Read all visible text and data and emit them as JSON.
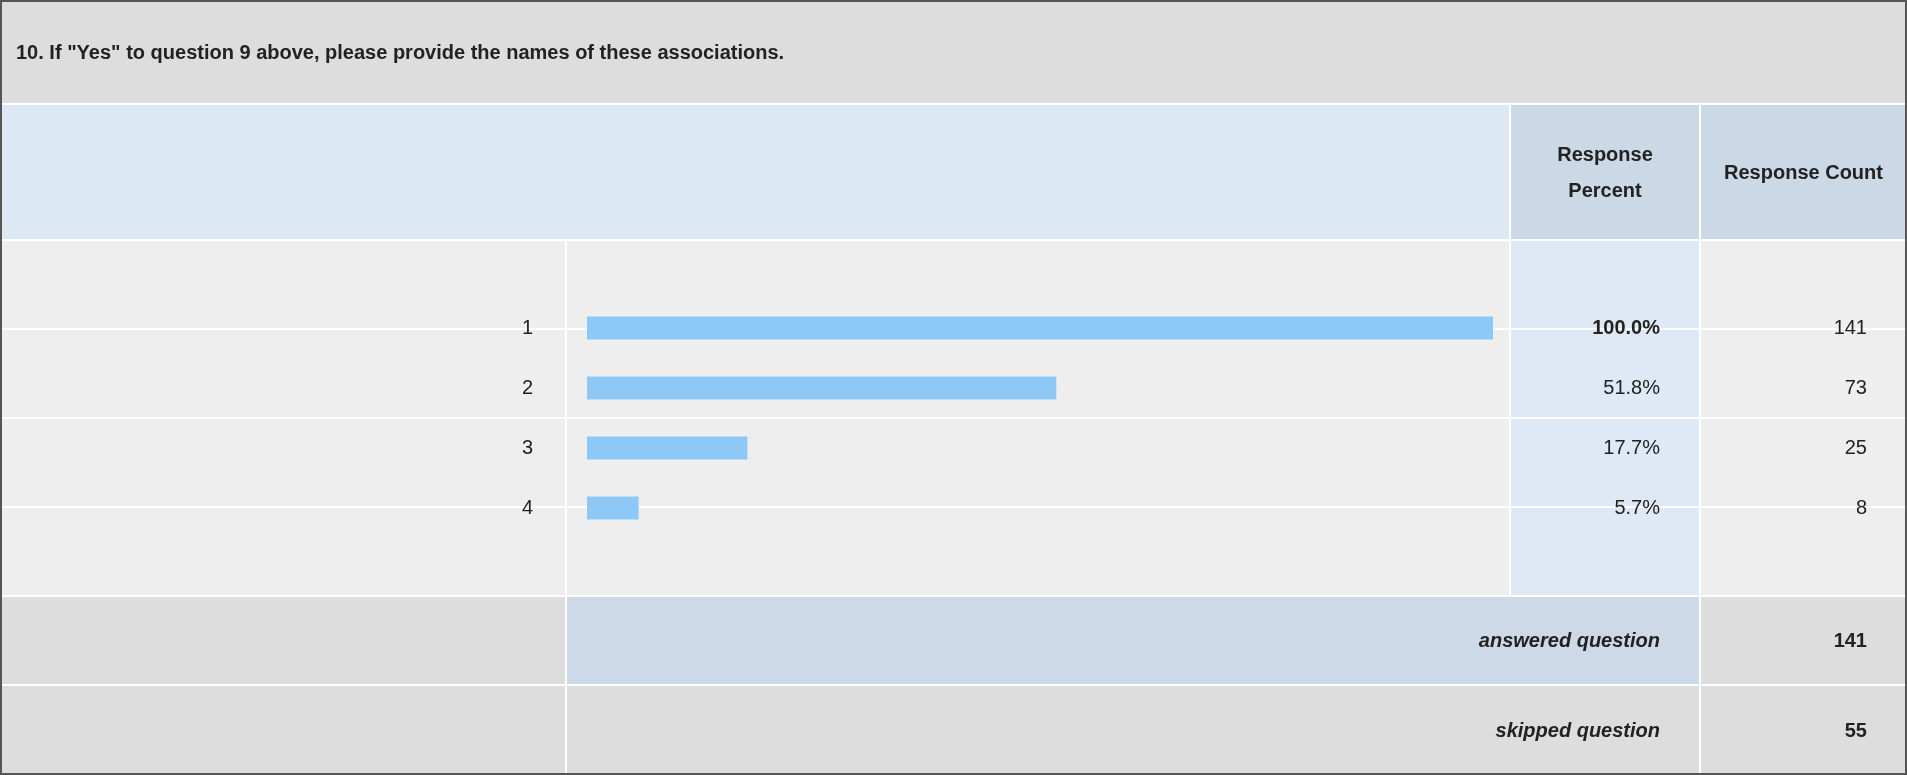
{
  "chart_data": {
    "type": "bar",
    "orientation": "horizontal",
    "title": "10. If \"Yes\" to question 9 above, please provide the names of these associations.",
    "categories": [
      "1",
      "2",
      "3",
      "4"
    ],
    "values": [
      100,
      51.8,
      17.7,
      5.7
    ],
    "value_labels": [
      "100.0%",
      "51.8%",
      "17.7%",
      "5.7%"
    ],
    "color": "#8ec8f6",
    "xlim": [
      0,
      100
    ],
    "tick_labels": "y",
    "annotations": [
      "Response Percent",
      "Response Count",
      "141",
      "73",
      "25",
      "8",
      "answered question",
      "141",
      "skipped question",
      "55"
    ]
  }
}
